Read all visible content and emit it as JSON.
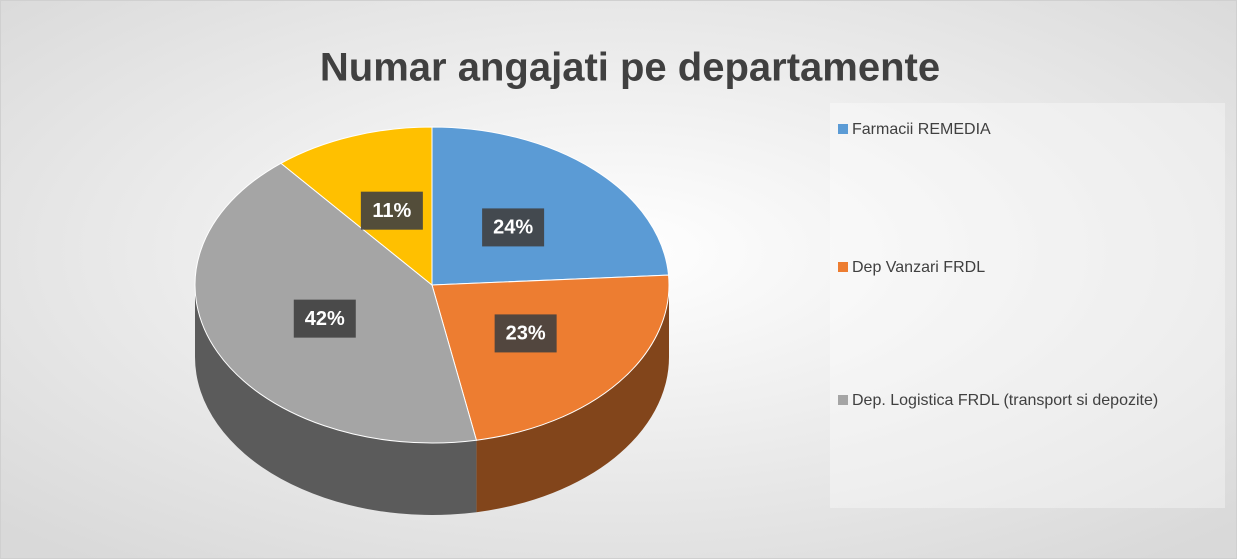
{
  "chart_data": {
    "type": "pie",
    "title": "Numar angajati pe departamente",
    "categories": [
      "Farmacii REMEDIA",
      "Dep Vanzari FRDL",
      "Dep. Logistica FRDL (transport si depozite)",
      null
    ],
    "values": [
      24,
      23,
      42,
      11
    ],
    "value_labels": [
      "24%",
      "23%",
      "42%",
      "11%"
    ],
    "colors": [
      "#5b9bd5",
      "#ed7d31",
      "#a5a5a5",
      "#ffc000"
    ],
    "legend": "right"
  }
}
